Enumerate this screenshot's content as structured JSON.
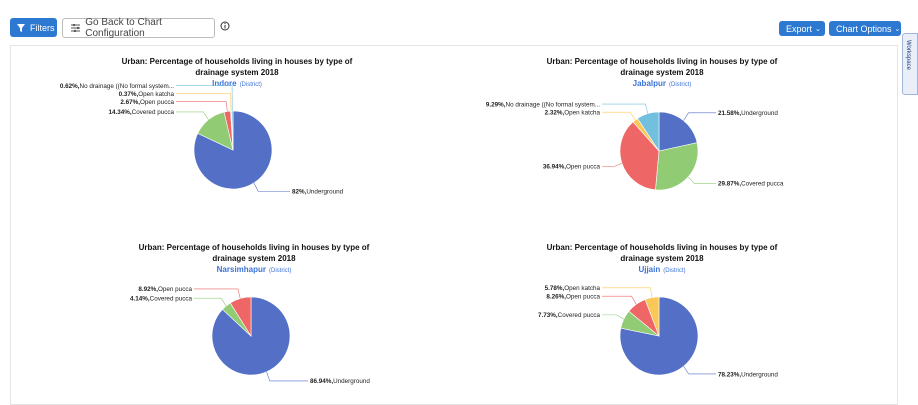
{
  "toolbar": {
    "filters": "Filters",
    "back": "Go Back to Chart Configuration",
    "export": "Export",
    "chart_options": "Chart Options",
    "workspace": "Workspace"
  },
  "chart_data": [
    {
      "type": "pie",
      "title": "Urban: Percentage of households living in houses by type of drainage system 2018",
      "subtitle": "Indore",
      "subtitle_note": "(District)",
      "categories": [
        "Underground",
        "Covered pucca",
        "Open pucca",
        "Open katcha",
        "No drainage ((No formal system..."
      ],
      "values": [
        82,
        14.34,
        2.67,
        0.37,
        0.62
      ],
      "value_labels": [
        "82%,",
        "14.34%,",
        "2.67%,",
        "0.37%,",
        "0.62%,"
      ],
      "colors": [
        "#5470c6",
        "#91cc75",
        "#ee6666",
        "#fac858",
        "#73c0de"
      ]
    },
    {
      "type": "pie",
      "title": "Urban: Percentage of households living in houses by type of drainage system 2018",
      "subtitle": "Jabalpur",
      "subtitle_note": "(District)",
      "categories": [
        "Underground",
        "Covered pucca",
        "Open pucca",
        "Open katcha",
        "No drainage ((No formal system..."
      ],
      "values": [
        21.58,
        29.87,
        36.94,
        2.32,
        9.29
      ],
      "value_labels": [
        "21.58%,",
        "29.87%,",
        "36.94%,",
        "2.32%,",
        "9.29%,"
      ],
      "colors": [
        "#5470c6",
        "#91cc75",
        "#ee6666",
        "#fac858",
        "#73c0de"
      ]
    },
    {
      "type": "pie",
      "title": "Urban: Percentage of households living in houses by type of drainage system 2018",
      "subtitle": "Narsimhapur",
      "subtitle_note": "(District)",
      "categories": [
        "Underground",
        "Covered pucca",
        "Open pucca"
      ],
      "values": [
        86.94,
        4.14,
        8.92
      ],
      "value_labels": [
        "86.94%,",
        "4.14%,",
        "8.92%,"
      ],
      "colors": [
        "#5470c6",
        "#91cc75",
        "#ee6666"
      ]
    },
    {
      "type": "pie",
      "title": "Urban: Percentage of households living in houses by type of drainage system 2018",
      "subtitle": "Ujjain",
      "subtitle_note": "(District)",
      "categories": [
        "Underground",
        "Covered pucca",
        "Open pucca",
        "Open katcha"
      ],
      "values": [
        78.23,
        7.73,
        8.26,
        5.78
      ],
      "value_labels": [
        "78.23%,",
        "7.73%,",
        "8.26%,",
        "5.78%,"
      ],
      "colors": [
        "#5470c6",
        "#91cc75",
        "#ee6666",
        "#fac858"
      ]
    }
  ]
}
